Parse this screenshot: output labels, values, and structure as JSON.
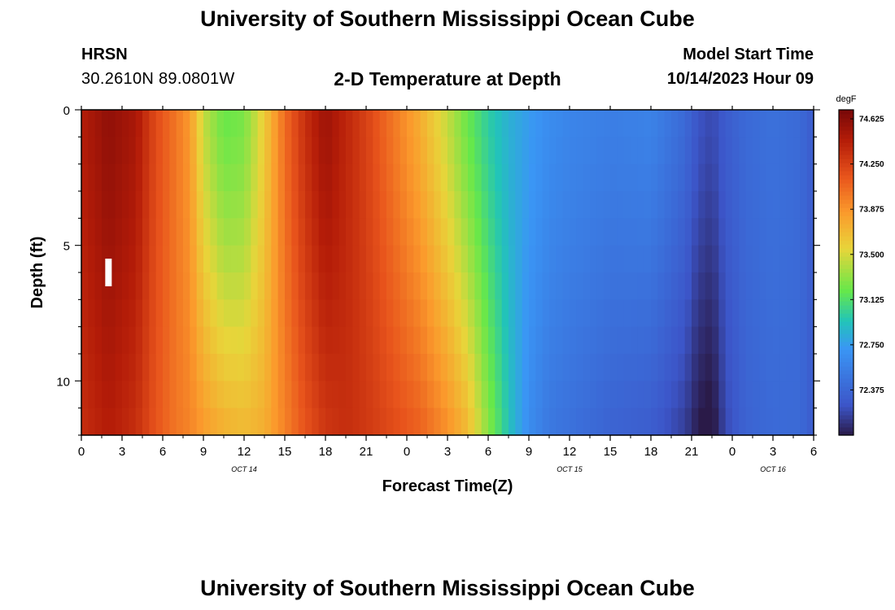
{
  "page": {
    "title": "University of Southern Mississippi Ocean Cube",
    "title_repeat": "University of Southern Mississippi Ocean Cube",
    "station": "HRSN",
    "coordinates": "30.2610N  89.0801W",
    "subtitle": "2-D Temperature at Depth",
    "model_start_label": "Model Start Time",
    "model_start_value": "10/14/2023 Hour 09"
  },
  "chart_data": {
    "type": "heatmap",
    "title": "2-D Temperature at Depth",
    "xlabel": "Forecast Time(Z)",
    "ylabel": "Depth (ft)",
    "x_tick_labels": [
      "0",
      "3",
      "6",
      "9",
      "12",
      "15",
      "18",
      "21",
      "0",
      "3",
      "6",
      "9",
      "12",
      "15",
      "18",
      "21",
      "0",
      "3",
      "6"
    ],
    "x_range_hours": [
      0,
      54
    ],
    "date_labels": [
      {
        "text": "OCT 14",
        "hour": 12
      },
      {
        "text": "OCT 15",
        "hour": 36
      },
      {
        "text": "OCT 16",
        "hour": 51
      }
    ],
    "y_ticks": [
      0,
      5,
      10
    ],
    "y_range_ft": [
      0,
      12
    ],
    "y_inverted": true,
    "colorbar": {
      "unit": "degF",
      "min": 72.0,
      "max": 74.7,
      "tick_values": [
        74.625,
        74.25,
        73.875,
        73.5,
        73.125,
        72.75,
        72.375
      ],
      "tick_labels": [
        "74.625",
        "74.250",
        "73.875",
        "73.500",
        "73.125",
        "72.750",
        "72.375"
      ],
      "colors": [
        "#2a1a48",
        "#3c55c8",
        "#3a96f5",
        "#22c4b8",
        "#66e84a",
        "#e8d53a",
        "#fb9a2c",
        "#e8541c",
        "#b41c08",
        "#780808"
      ],
      "stops": [
        72.0,
        72.25,
        72.72,
        72.95,
        73.2,
        73.55,
        73.85,
        74.15,
        74.45,
        74.7
      ]
    },
    "profile_hours": [
      0,
      2,
      4,
      5.5,
      7,
      8,
      9,
      10.5,
      12,
      13.5,
      15,
      16.5,
      18,
      19.5,
      21,
      23,
      25,
      27,
      28.5,
      30,
      31.5,
      33,
      34.5,
      36,
      39,
      42,
      44.5,
      45.5,
      46.5,
      47.5,
      49,
      51,
      53,
      54
    ],
    "profile_surface_degF": [
      74.45,
      74.6,
      74.5,
      74.2,
      74.0,
      73.85,
      73.45,
      73.2,
      73.25,
      73.6,
      74.05,
      74.35,
      74.55,
      74.4,
      74.25,
      74.0,
      73.75,
      73.45,
      73.2,
      73.0,
      72.85,
      72.75,
      72.65,
      72.6,
      72.55,
      72.58,
      72.4,
      72.25,
      72.2,
      72.3,
      72.4,
      72.45,
      72.4,
      72.3
    ],
    "profile_bottom_degF": [
      74.35,
      74.45,
      74.35,
      74.15,
      74.0,
      73.95,
      73.85,
      73.75,
      73.7,
      73.75,
      73.95,
      74.15,
      74.3,
      74.35,
      74.3,
      74.2,
      74.1,
      73.9,
      73.7,
      73.3,
      72.95,
      72.65,
      72.5,
      72.45,
      72.35,
      72.3,
      72.15,
      72.0,
      71.95,
      72.2,
      72.35,
      72.4,
      72.4,
      72.3
    ],
    "marker": {
      "label": "I",
      "hour": 2,
      "depth_ft": 6
    }
  }
}
